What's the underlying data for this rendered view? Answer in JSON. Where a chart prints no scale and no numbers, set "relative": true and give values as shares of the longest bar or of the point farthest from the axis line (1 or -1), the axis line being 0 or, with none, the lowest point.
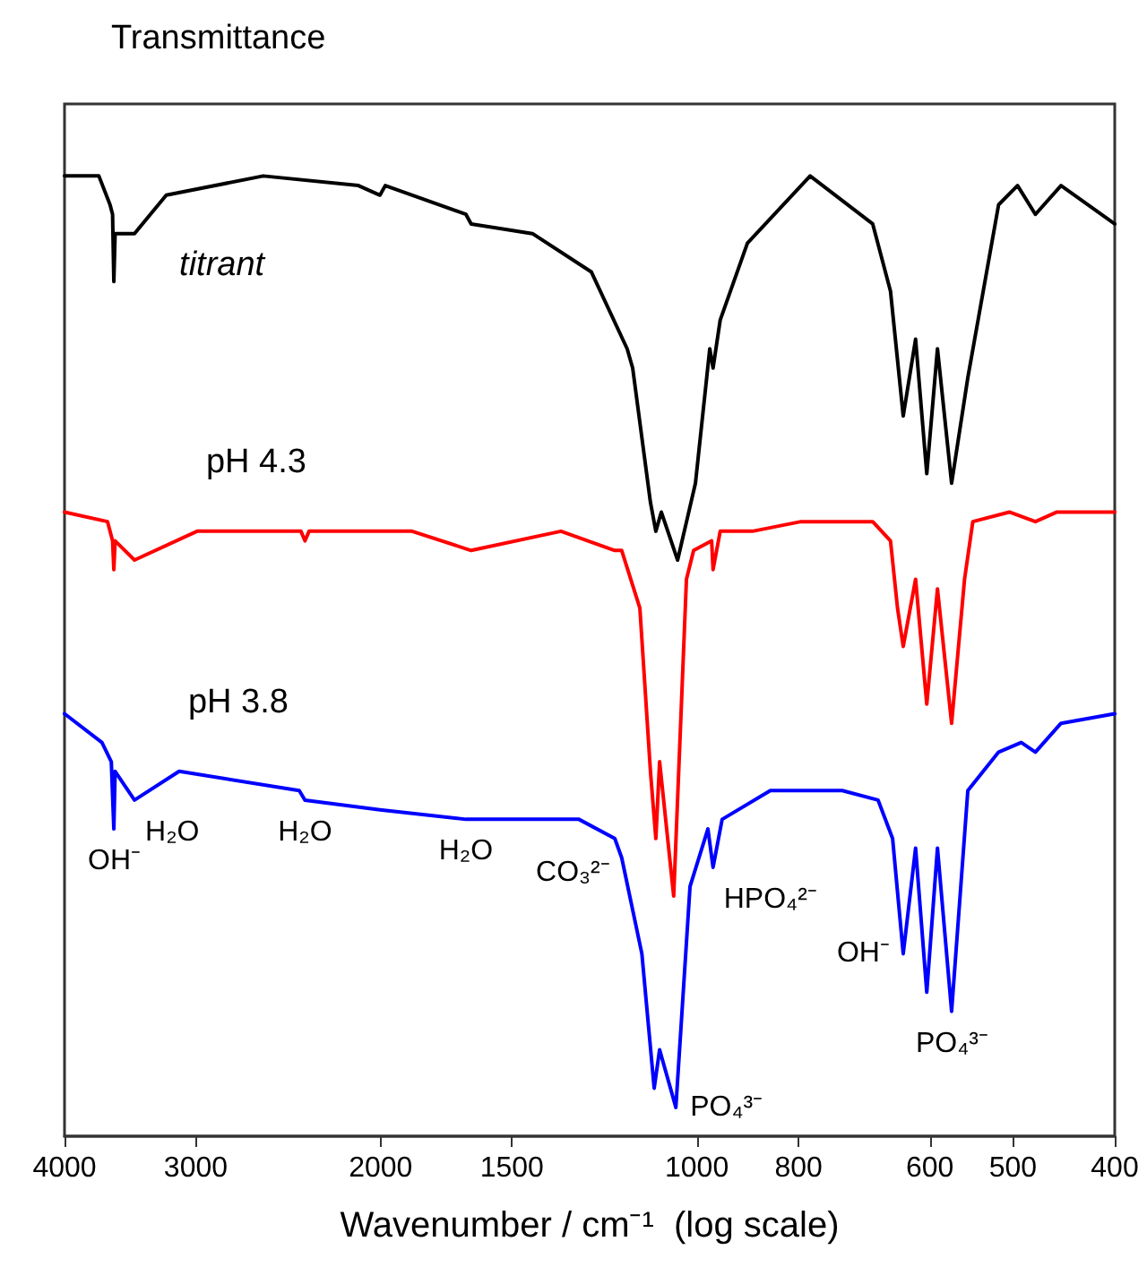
{
  "chart_data": {
    "type": "line",
    "relative": true,
    "ylabel": "Transmittance",
    "xlabel": "Wavenumber / cm⁻¹  (log scale)",
    "log": "x",
    "xlim": [
      4000,
      400
    ],
    "xticks": [
      4000,
      3000,
      2000,
      1500,
      1000,
      800,
      600,
      500,
      400
    ],
    "grid": false,
    "legend": false,
    "marker": "none",
    "line_style": "solid",
    "series": [
      {
        "name": "titrant",
        "color": "#000000",
        "x": [
          4000,
          3710,
          3620,
          3600,
          3590,
          3580,
          3431,
          3200,
          2587,
          2100,
          2003,
          1980,
          1659,
          1640,
          1434,
          1260,
          1165,
          1151,
          1107,
          1094,
          1081,
          1043,
          1003,
          972,
          965,
          950,
          895,
          780,
          680,
          654,
          636,
          619,
          604,
          590,
          572,
          552,
          516,
          495,
          476,
          450,
          400
        ],
        "values": [
          1.0,
          1.0,
          0.97,
          0.96,
          0.89,
          0.94,
          0.94,
          0.98,
          1.0,
          0.99,
          0.98,
          0.99,
          0.96,
          0.95,
          0.94,
          0.9,
          0.82,
          0.8,
          0.66,
          0.63,
          0.65,
          0.6,
          0.68,
          0.82,
          0.8,
          0.85,
          0.93,
          1.0,
          0.95,
          0.88,
          0.75,
          0.83,
          0.69,
          0.82,
          0.68,
          0.79,
          0.97,
          0.99,
          0.96,
          0.99,
          0.95
        ]
      },
      {
        "name": "pH 4.3",
        "color": "#ff0000",
        "x": [
          4000,
          3640,
          3600,
          3590,
          3580,
          3431,
          2991,
          2765,
          2382,
          2361,
          2340,
          1867,
          1640,
          1347,
          1197,
          1179,
          1133,
          1107,
          1094,
          1085,
          1052,
          1023,
          1007,
          968,
          965,
          950,
          885,
          796,
          680,
          654,
          644,
          636,
          619,
          604,
          590,
          572,
          556,
          546,
          504,
          476,
          454,
          400
        ],
        "values": [
          0.65,
          0.64,
          0.62,
          0.59,
          0.62,
          0.6,
          0.63,
          0.63,
          0.63,
          0.62,
          0.63,
          0.63,
          0.61,
          0.63,
          0.61,
          0.61,
          0.55,
          0.38,
          0.31,
          0.39,
          0.25,
          0.58,
          0.61,
          0.62,
          0.59,
          0.63,
          0.63,
          0.64,
          0.64,
          0.62,
          0.55,
          0.51,
          0.58,
          0.45,
          0.57,
          0.43,
          0.58,
          0.64,
          0.65,
          0.64,
          0.65,
          0.65
        ]
      },
      {
        "name": "pH 3.8",
        "color": "#0000ff",
        "x": [
          4000,
          3685,
          3610,
          3590,
          3580,
          3431,
          3111,
          2391,
          2361,
          2003,
          1659,
          1457,
          1295,
          1197,
          1179,
          1128,
          1098,
          1085,
          1047,
          1015,
          976,
          965,
          946,
          851,
          727,
          672,
          651,
          636,
          619,
          604,
          590,
          572,
          552,
          516,
          491,
          476,
          450,
          400
        ],
        "values": [
          0.44,
          0.41,
          0.39,
          0.32,
          0.38,
          0.35,
          0.38,
          0.36,
          0.35,
          0.34,
          0.33,
          0.33,
          0.33,
          0.31,
          0.29,
          0.19,
          0.05,
          0.09,
          0.03,
          0.26,
          0.32,
          0.28,
          0.33,
          0.36,
          0.36,
          0.35,
          0.31,
          0.19,
          0.3,
          0.15,
          0.3,
          0.13,
          0.36,
          0.4,
          0.41,
          0.4,
          0.43,
          0.44
        ]
      }
    ],
    "annotations": [
      {
        "text": "OH⁻",
        "x": 3590,
        "y": 0.32
      },
      {
        "text": "H₂O",
        "x": 3431,
        "y": 0.35
      },
      {
        "text": "H₂O",
        "x": 2361,
        "y": 0.35
      },
      {
        "text": "H₂O",
        "x": 1659,
        "y": 0.33
      },
      {
        "text": "CO₃²⁻",
        "x": 1457,
        "y": 0.33
      },
      {
        "text": "HPO₄²⁻",
        "x": 965,
        "y": 0.28
      },
      {
        "text": "PO₄³⁻",
        "x": 1047,
        "y": 0.03
      },
      {
        "text": "OH⁻",
        "x": 636,
        "y": 0.19
      },
      {
        "text": "PO₄³⁻",
        "x": 572,
        "y": 0.13
      }
    ]
  }
}
